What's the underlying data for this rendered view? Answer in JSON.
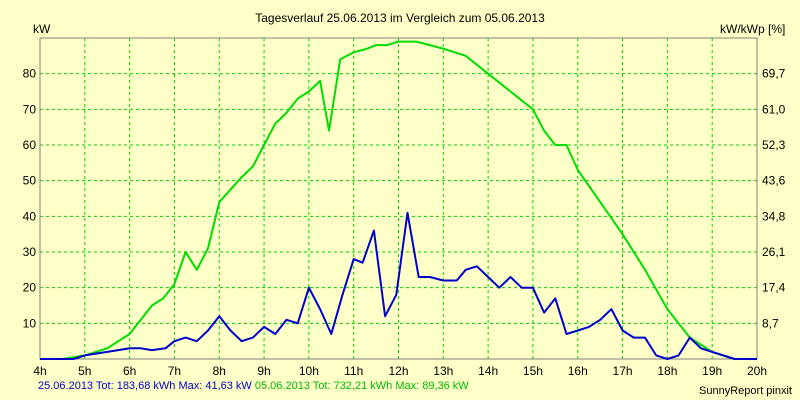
{
  "chart_data": {
    "type": "line",
    "title": "Tagesverlauf 25.06.2013 im Vergleich zum 05.06.2013",
    "ylabel_left": "kW",
    "ylabel_right": "kW/kWp [%]",
    "x_ticks": [
      "4h",
      "5h",
      "6h",
      "7h",
      "8h",
      "9h",
      "10h",
      "11h",
      "12h",
      "13h",
      "14h",
      "15h",
      "16h",
      "17h",
      "18h",
      "19h",
      "20h"
    ],
    "x_range_hours": [
      4,
      20
    ],
    "y_left_ticks": [
      10,
      20,
      30,
      40,
      50,
      60,
      70,
      80
    ],
    "y_right_ticks": [
      "8,7",
      "17,4",
      "26,1",
      "34,8",
      "43,6",
      "52,3",
      "61,0",
      "69,7"
    ],
    "ylim": [
      0,
      90
    ],
    "grid": true,
    "series": [
      {
        "name": "25.06.2013",
        "color": "#0000cc",
        "points": [
          [
            4,
            0
          ],
          [
            4.75,
            0
          ],
          [
            5,
            1
          ],
          [
            5.5,
            2
          ],
          [
            6,
            3
          ],
          [
            6.25,
            3
          ],
          [
            6.5,
            2.5
          ],
          [
            6.8,
            3
          ],
          [
            7,
            5
          ],
          [
            7.25,
            6
          ],
          [
            7.5,
            5
          ],
          [
            7.75,
            8
          ],
          [
            8,
            12
          ],
          [
            8.25,
            8
          ],
          [
            8.5,
            5
          ],
          [
            8.75,
            6
          ],
          [
            9,
            9
          ],
          [
            9.25,
            7
          ],
          [
            9.5,
            11
          ],
          [
            9.75,
            10
          ],
          [
            10,
            20
          ],
          [
            10.25,
            14
          ],
          [
            10.5,
            7
          ],
          [
            10.75,
            18
          ],
          [
            11,
            28
          ],
          [
            11.2,
            27
          ],
          [
            11.45,
            36
          ],
          [
            11.7,
            12
          ],
          [
            11.95,
            18
          ],
          [
            12.2,
            41
          ],
          [
            12.45,
            23
          ],
          [
            12.7,
            23
          ],
          [
            13,
            22
          ],
          [
            13.3,
            22
          ],
          [
            13.5,
            25
          ],
          [
            13.75,
            26
          ],
          [
            14,
            23
          ],
          [
            14.25,
            20
          ],
          [
            14.5,
            23
          ],
          [
            14.75,
            20
          ],
          [
            15,
            20
          ],
          [
            15.25,
            13
          ],
          [
            15.5,
            17
          ],
          [
            15.75,
            7
          ],
          [
            16,
            8
          ],
          [
            16.25,
            9
          ],
          [
            16.5,
            11
          ],
          [
            16.75,
            14
          ],
          [
            17,
            8
          ],
          [
            17.25,
            6
          ],
          [
            17.5,
            6
          ],
          [
            17.75,
            1
          ],
          [
            18,
            0
          ],
          [
            18.25,
            1
          ],
          [
            18.5,
            6
          ],
          [
            18.75,
            3
          ],
          [
            19,
            2
          ],
          [
            19.5,
            0
          ],
          [
            20,
            0
          ]
        ]
      },
      {
        "name": "05.06.2013",
        "color": "#00dd00",
        "points": [
          [
            4,
            0
          ],
          [
            4.5,
            0
          ],
          [
            5,
            1
          ],
          [
            5.5,
            3
          ],
          [
            6,
            7
          ],
          [
            6.5,
            15
          ],
          [
            6.75,
            17
          ],
          [
            7,
            21
          ],
          [
            7.25,
            30
          ],
          [
            7.5,
            25
          ],
          [
            7.75,
            31
          ],
          [
            8,
            44
          ],
          [
            8.5,
            51
          ],
          [
            8.75,
            54
          ],
          [
            9,
            60
          ],
          [
            9.25,
            66
          ],
          [
            9.5,
            69
          ],
          [
            9.75,
            73
          ],
          [
            10,
            75
          ],
          [
            10.25,
            78
          ],
          [
            10.45,
            64
          ],
          [
            10.7,
            84
          ],
          [
            11,
            86
          ],
          [
            11.3,
            87
          ],
          [
            11.5,
            88
          ],
          [
            11.75,
            88
          ],
          [
            12,
            89
          ],
          [
            12.4,
            89
          ],
          [
            12.7,
            88
          ],
          [
            13,
            87
          ],
          [
            13.5,
            85
          ],
          [
            14,
            80
          ],
          [
            14.5,
            75
          ],
          [
            15,
            70
          ],
          [
            15.25,
            64
          ],
          [
            15.5,
            60
          ],
          [
            15.75,
            60
          ],
          [
            16,
            53
          ],
          [
            16.5,
            44
          ],
          [
            17,
            35
          ],
          [
            17.5,
            25
          ],
          [
            18,
            14
          ],
          [
            18.5,
            6
          ],
          [
            19,
            2
          ],
          [
            19.5,
            0
          ],
          [
            20,
            0
          ]
        ]
      }
    ]
  },
  "footer": {
    "series1_label": "25.06.2013 Tot: 183,68 kWh Max: 41,63 kW",
    "series2_label": "05.06.2013 Tot: 732,21 kWh Max: 89,36 kW",
    "credit": "SunnyReport pinxit"
  },
  "colors": {
    "background": "#ffffc8",
    "grid": "#00d000",
    "axis": "#808080"
  }
}
